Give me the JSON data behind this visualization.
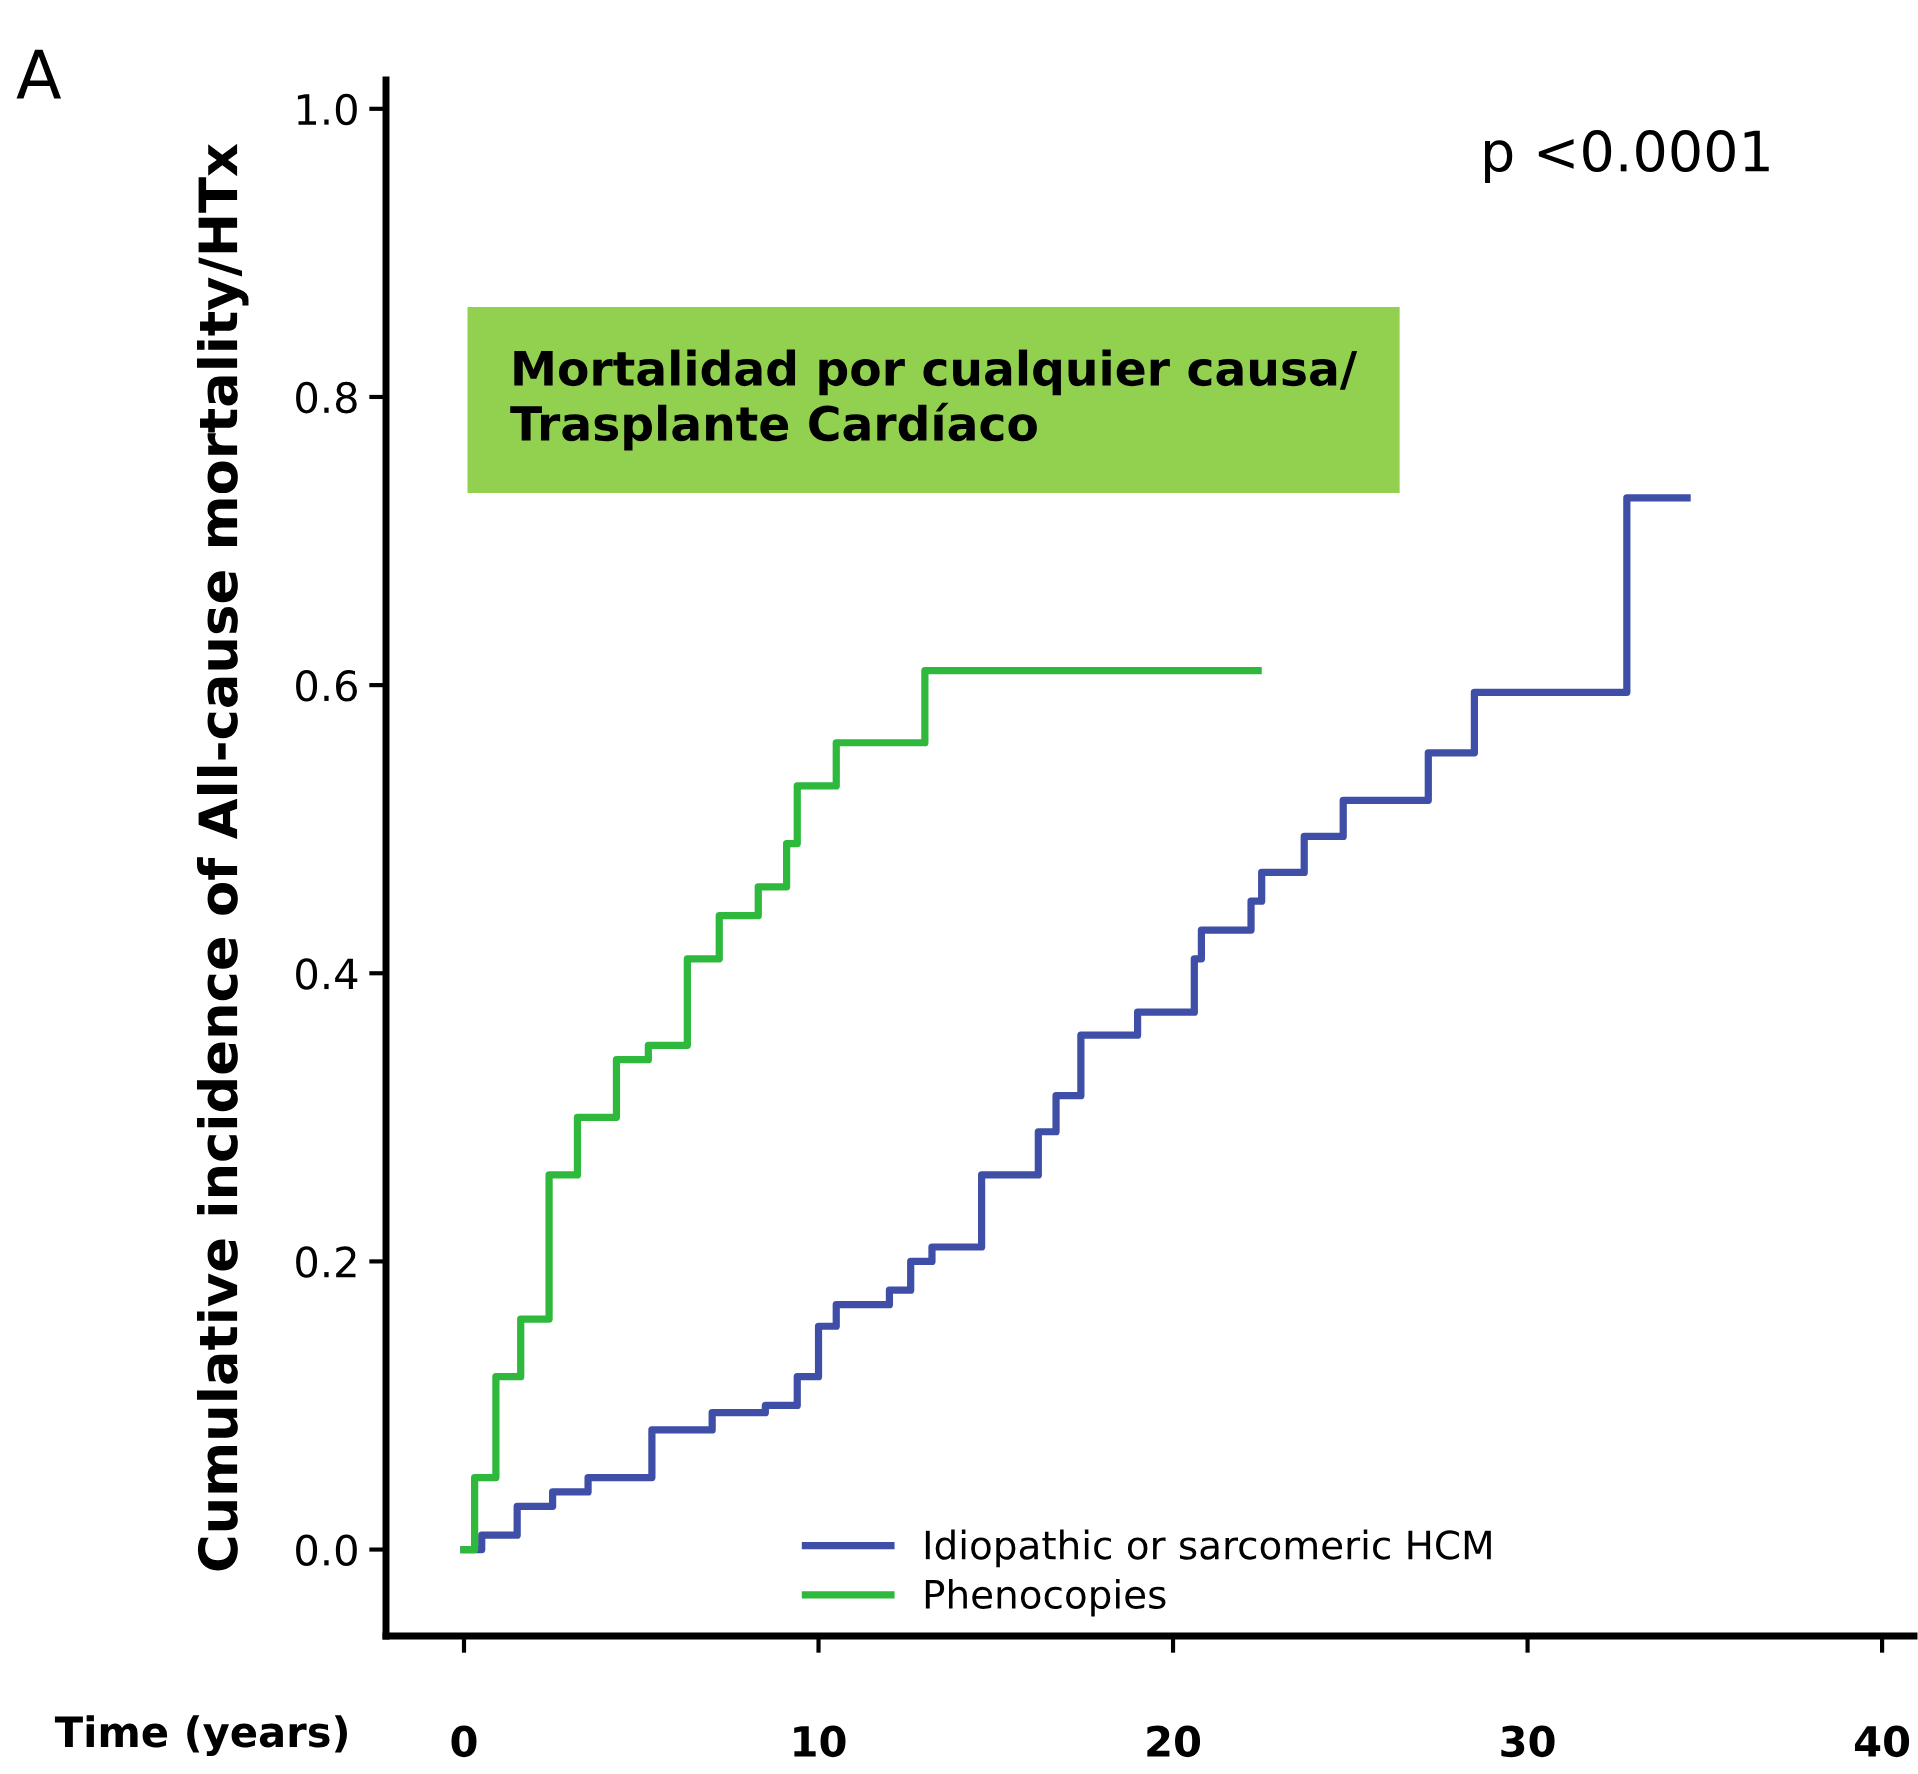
{
  "chart_data": {
    "type": "step",
    "title": "Mortalidad por cualquier causa/\nTrasplante Cardíaco",
    "xlabel": "Time (years)",
    "ylabel": "Cumulative incidence of All-cause mortality/HTx",
    "annotations": [
      "A",
      "p <0.0001"
    ],
    "series": [
      {
        "name": "Idiopathic or sarcomeric HCM",
        "color": "#3f4fa8",
        "x": [
          0,
          0.5,
          1.5,
          2.5,
          3.5,
          5.3,
          7,
          8.5,
          9.4,
          10,
          10.5,
          12,
          12.6,
          13.2,
          14.6,
          16.2,
          16.7,
          17.4,
          19,
          20.6,
          20.8,
          22.2,
          22.5,
          23.7,
          24.8,
          27.2,
          28.5,
          32.8,
          34.5
        ],
        "values": [
          0,
          0.01,
          0.03,
          0.04,
          0.05,
          0.083,
          0.095,
          0.1,
          0.12,
          0.155,
          0.17,
          0.18,
          0.2,
          0.21,
          0.26,
          0.29,
          0.315,
          0.357,
          0.373,
          0.41,
          0.43,
          0.45,
          0.47,
          0.495,
          0.52,
          0.553,
          0.595,
          0.73,
          0.73
        ]
      },
      {
        "name": "Phenocopies",
        "color": "#2eb83c",
        "x": [
          0,
          0.3,
          0.9,
          1.6,
          2.4,
          3.2,
          4.3,
          5.2,
          6.3,
          7.2,
          8.3,
          9.1,
          9.4,
          10.5,
          13.0,
          22.4
        ],
        "values": [
          0,
          0.05,
          0.12,
          0.16,
          0.26,
          0.3,
          0.34,
          0.35,
          0.41,
          0.44,
          0.46,
          0.49,
          0.53,
          0.56,
          0.61,
          0.61
        ]
      }
    ],
    "xlim": [
      -2.2,
      40.9
    ],
    "xticks": [
      0,
      10,
      20,
      30,
      40
    ],
    "ylim": [
      -0.06,
      1.02
    ],
    "yticks": [
      {
        "value": 0,
        "label": "0.0"
      },
      {
        "value": 0.2,
        "label": "0.2"
      },
      {
        "value": 0.4,
        "label": "0.4"
      },
      {
        "value": 0.6,
        "label": "0.6"
      },
      {
        "value": 0.8,
        "label": "0.8"
      },
      {
        "value": 1.0,
        "label": "1.0"
      }
    ],
    "grid": false,
    "legend": "bottom"
  }
}
